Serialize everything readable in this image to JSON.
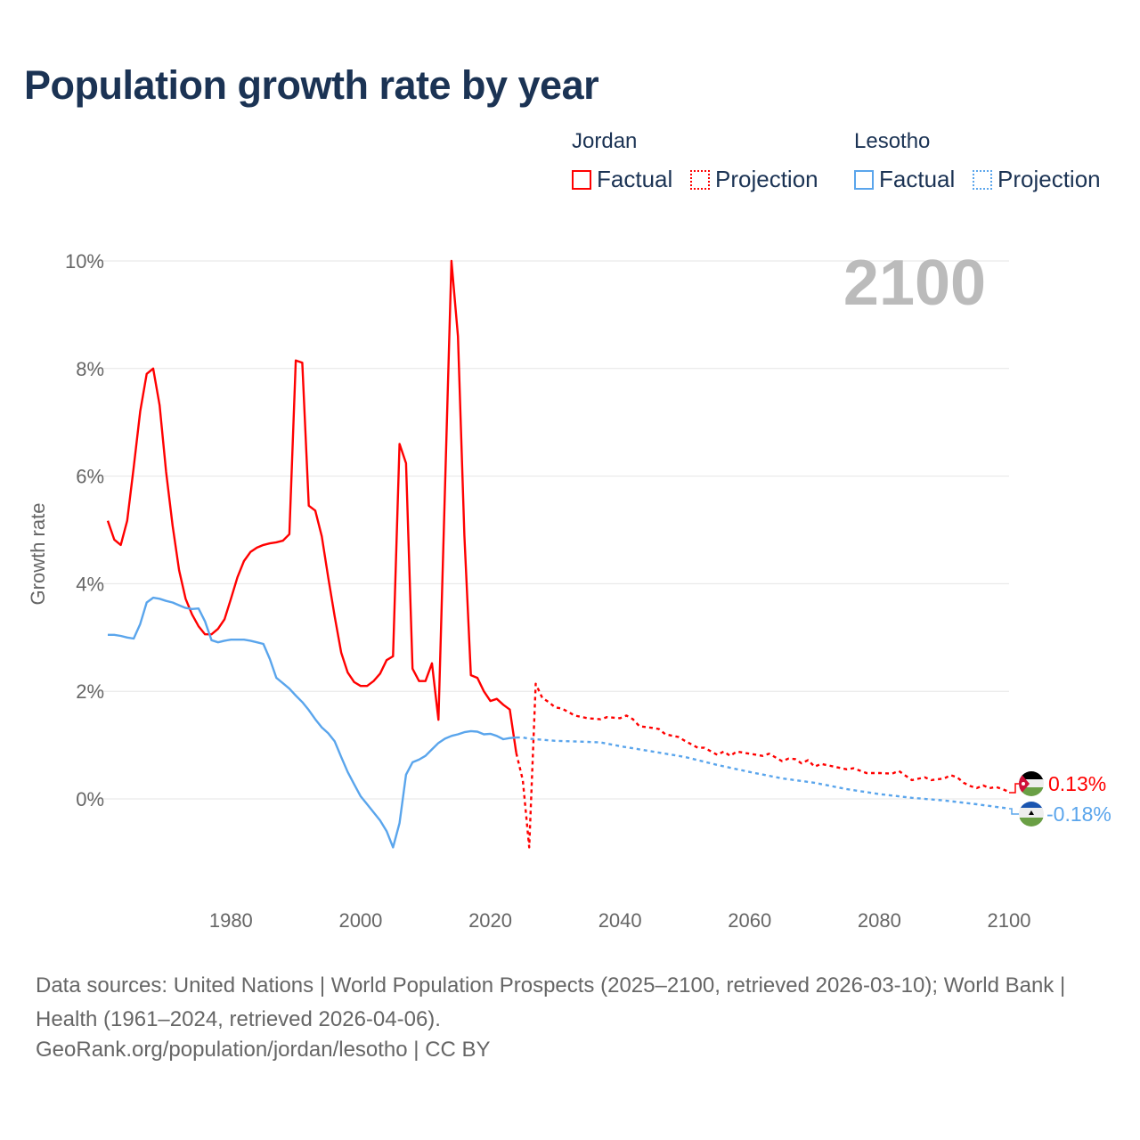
{
  "title": "Population growth rate by year",
  "legend": {
    "groups": [
      {
        "name": "Jordan",
        "factual": "Factual",
        "projection": "Projection",
        "color": "#ff0000"
      },
      {
        "name": "Lesotho",
        "factual": "Factual",
        "projection": "Projection",
        "color": "#5aa5ec"
      }
    ]
  },
  "year_label": "2100",
  "end_labels": {
    "jordan": "0.13%",
    "lesotho": "-0.18%"
  },
  "sources": "Data sources: United Nations | World Population Prospects (2025–2100, retrieved 2026-03-10); World Bank | Health (1961–2024, retrieved 2026-04-06).",
  "footer": "GeoRank.org/population/jordan/lesotho | CC BY",
  "chart_data": {
    "type": "line",
    "title": "Population growth rate by year",
    "xlabel": "",
    "ylabel": "Growth rate",
    "xlim": [
      1961,
      2100
    ],
    "ylim": [
      -1,
      10
    ],
    "x_ticks": [
      1980,
      2000,
      2020,
      2040,
      2060,
      2080,
      2100
    ],
    "y_ticks": [
      0,
      2,
      4,
      6,
      8,
      10
    ],
    "y_tick_labels": [
      "0%",
      "2%",
      "4%",
      "6%",
      "8%",
      "10%"
    ],
    "grid": true,
    "legend_position": "top-right",
    "series": [
      {
        "name": "Jordan Factual",
        "color": "#ff0000",
        "style": "solid",
        "points": [
          [
            1961,
            5.17
          ],
          [
            1962,
            4.82
          ],
          [
            1963,
            4.72
          ],
          [
            1964,
            5.17
          ],
          [
            1965,
            6.16
          ],
          [
            1966,
            7.2
          ],
          [
            1967,
            7.9
          ],
          [
            1968,
            8.0
          ],
          [
            1969,
            7.32
          ],
          [
            1970,
            6.08
          ],
          [
            1971,
            5.08
          ],
          [
            1972,
            4.25
          ],
          [
            1973,
            3.72
          ],
          [
            1974,
            3.43
          ],
          [
            1975,
            3.21
          ],
          [
            1976,
            3.06
          ],
          [
            1977,
            3.06
          ],
          [
            1978,
            3.16
          ],
          [
            1979,
            3.34
          ],
          [
            1980,
            3.72
          ],
          [
            1981,
            4.12
          ],
          [
            1982,
            4.42
          ],
          [
            1983,
            4.59
          ],
          [
            1984,
            4.67
          ],
          [
            1985,
            4.72
          ],
          [
            1986,
            4.75
          ],
          [
            1987,
            4.77
          ],
          [
            1988,
            4.8
          ],
          [
            1989,
            4.92
          ],
          [
            1990,
            8.15
          ],
          [
            1991,
            8.11
          ],
          [
            1992,
            5.45
          ],
          [
            1993,
            5.36
          ],
          [
            1994,
            4.88
          ],
          [
            1995,
            4.12
          ],
          [
            1996,
            3.39
          ],
          [
            1997,
            2.72
          ],
          [
            1998,
            2.35
          ],
          [
            1999,
            2.17
          ],
          [
            2000,
            2.1
          ],
          [
            2001,
            2.1
          ],
          [
            2002,
            2.19
          ],
          [
            2003,
            2.33
          ],
          [
            2004,
            2.58
          ],
          [
            2005,
            2.65
          ],
          [
            2006,
            6.6
          ],
          [
            2007,
            6.24
          ],
          [
            2008,
            2.42
          ],
          [
            2009,
            2.19
          ],
          [
            2010,
            2.19
          ],
          [
            2011,
            2.52
          ],
          [
            2012,
            1.47
          ],
          [
            2013,
            5.75
          ],
          [
            2014,
            10.0
          ],
          [
            2015,
            8.6
          ],
          [
            2016,
            4.9
          ],
          [
            2017,
            2.3
          ],
          [
            2018,
            2.25
          ],
          [
            2019,
            2.0
          ],
          [
            2020,
            1.82
          ],
          [
            2021,
            1.86
          ],
          [
            2022,
            1.75
          ],
          [
            2023,
            1.66
          ],
          [
            2024,
            0.85
          ]
        ]
      },
      {
        "name": "Jordan Projection",
        "color": "#ff0000",
        "style": "dotted",
        "points": [
          [
            2024,
            0.85
          ],
          [
            2025,
            0.35
          ],
          [
            2026,
            -0.9
          ],
          [
            2027,
            2.14
          ],
          [
            2028,
            1.88
          ],
          [
            2029,
            1.8
          ],
          [
            2030,
            1.7
          ],
          [
            2031,
            1.68
          ],
          [
            2032,
            1.62
          ],
          [
            2033,
            1.55
          ],
          [
            2035,
            1.5
          ],
          [
            2037,
            1.48
          ],
          [
            2038,
            1.52
          ],
          [
            2040,
            1.5
          ],
          [
            2041,
            1.55
          ],
          [
            2042,
            1.48
          ],
          [
            2043,
            1.35
          ],
          [
            2045,
            1.32
          ],
          [
            2046,
            1.3
          ],
          [
            2047,
            1.2
          ],
          [
            2049,
            1.15
          ],
          [
            2050,
            1.08
          ],
          [
            2052,
            0.95
          ],
          [
            2053,
            0.95
          ],
          [
            2055,
            0.82
          ],
          [
            2056,
            0.88
          ],
          [
            2057,
            0.8
          ],
          [
            2058,
            0.88
          ],
          [
            2060,
            0.84
          ],
          [
            2062,
            0.8
          ],
          [
            2063,
            0.84
          ],
          [
            2065,
            0.7
          ],
          [
            2066,
            0.75
          ],
          [
            2067,
            0.74
          ],
          [
            2068,
            0.66
          ],
          [
            2069,
            0.72
          ],
          [
            2070,
            0.6
          ],
          [
            2071,
            0.65
          ],
          [
            2073,
            0.6
          ],
          [
            2075,
            0.55
          ],
          [
            2076,
            0.57
          ],
          [
            2078,
            0.48
          ],
          [
            2080,
            0.48
          ],
          [
            2082,
            0.47
          ],
          [
            2083,
            0.52
          ],
          [
            2085,
            0.35
          ],
          [
            2087,
            0.4
          ],
          [
            2088,
            0.35
          ],
          [
            2090,
            0.38
          ],
          [
            2091,
            0.44
          ],
          [
            2092,
            0.4
          ],
          [
            2093,
            0.3
          ],
          [
            2094,
            0.24
          ],
          [
            2095,
            0.2
          ],
          [
            2096,
            0.25
          ],
          [
            2097,
            0.2
          ],
          [
            2098,
            0.22
          ],
          [
            2099,
            0.18
          ],
          [
            2100,
            0.13
          ]
        ]
      },
      {
        "name": "Lesotho Factual",
        "color": "#5aa5ec",
        "style": "solid",
        "points": [
          [
            1961,
            3.05
          ],
          [
            1962,
            3.05
          ],
          [
            1963,
            3.03
          ],
          [
            1964,
            3.0
          ],
          [
            1965,
            2.98
          ],
          [
            1966,
            3.25
          ],
          [
            1967,
            3.65
          ],
          [
            1968,
            3.74
          ],
          [
            1969,
            3.72
          ],
          [
            1970,
            3.68
          ],
          [
            1971,
            3.65
          ],
          [
            1972,
            3.6
          ],
          [
            1973,
            3.55
          ],
          [
            1974,
            3.53
          ],
          [
            1975,
            3.54
          ],
          [
            1976,
            3.3
          ],
          [
            1977,
            2.95
          ],
          [
            1978,
            2.91
          ],
          [
            1979,
            2.94
          ],
          [
            1980,
            2.96
          ],
          [
            1981,
            2.96
          ],
          [
            1982,
            2.96
          ],
          [
            1983,
            2.94
          ],
          [
            1984,
            2.91
          ],
          [
            1985,
            2.88
          ],
          [
            1986,
            2.6
          ],
          [
            1987,
            2.25
          ],
          [
            1988,
            2.15
          ],
          [
            1989,
            2.05
          ],
          [
            1990,
            1.92
          ],
          [
            1991,
            1.8
          ],
          [
            1992,
            1.65
          ],
          [
            1993,
            1.48
          ],
          [
            1994,
            1.33
          ],
          [
            1995,
            1.22
          ],
          [
            1996,
            1.07
          ],
          [
            1997,
            0.78
          ],
          [
            1998,
            0.5
          ],
          [
            1999,
            0.27
          ],
          [
            2000,
            0.05
          ],
          [
            2001,
            -0.1
          ],
          [
            2002,
            -0.25
          ],
          [
            2003,
            -0.4
          ],
          [
            2004,
            -0.6
          ],
          [
            2005,
            -0.9
          ],
          [
            2006,
            -0.45
          ],
          [
            2007,
            0.45
          ],
          [
            2008,
            0.68
          ],
          [
            2009,
            0.73
          ],
          [
            2010,
            0.8
          ],
          [
            2011,
            0.92
          ],
          [
            2012,
            1.04
          ],
          [
            2013,
            1.12
          ],
          [
            2014,
            1.17
          ],
          [
            2015,
            1.2
          ],
          [
            2016,
            1.24
          ],
          [
            2017,
            1.26
          ],
          [
            2018,
            1.25
          ],
          [
            2019,
            1.2
          ],
          [
            2020,
            1.21
          ],
          [
            2021,
            1.17
          ],
          [
            2022,
            1.11
          ],
          [
            2023,
            1.13
          ],
          [
            2024,
            1.14
          ]
        ]
      },
      {
        "name": "Lesotho Projection",
        "color": "#5aa5ec",
        "style": "dotted",
        "points": [
          [
            2024,
            1.14
          ],
          [
            2025,
            1.14
          ],
          [
            2026,
            1.12
          ],
          [
            2030,
            1.08
          ],
          [
            2035,
            1.06
          ],
          [
            2037,
            1.05
          ],
          [
            2040,
            0.98
          ],
          [
            2045,
            0.88
          ],
          [
            2050,
            0.78
          ],
          [
            2055,
            0.63
          ],
          [
            2060,
            0.5
          ],
          [
            2065,
            0.38
          ],
          [
            2070,
            0.3
          ],
          [
            2075,
            0.18
          ],
          [
            2080,
            0.09
          ],
          [
            2085,
            0.02
          ],
          [
            2090,
            -0.03
          ],
          [
            2095,
            -0.1
          ],
          [
            2100,
            -0.18
          ]
        ]
      }
    ]
  }
}
